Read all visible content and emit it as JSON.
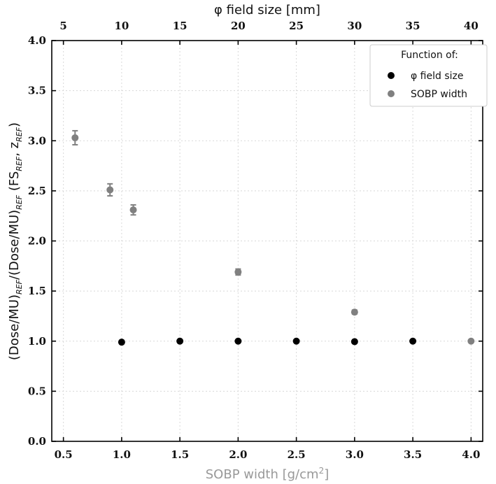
{
  "chart_data": {
    "type": "scatter",
    "xlabel": "SOBP width [g/cm²]",
    "xlabel_base": "SOBP width [g/cm",
    "xlabel_sup": "2",
    "xlabel_end": "]",
    "top_xlabel": "φ field size [mm]",
    "ylabel_parts": [
      "(Dose/MU)",
      "REF",
      "/(Dose/MU)",
      "REF",
      " (FS",
      "REF",
      ", z",
      "REF",
      ")"
    ],
    "xlim": [
      0.4,
      4.1
    ],
    "ylim": [
      0.0,
      4.0
    ],
    "x_ticks": [
      "0.5",
      "1.0",
      "1.5",
      "2.0",
      "2.5",
      "3.0",
      "3.5",
      "4.0"
    ],
    "y_ticks": [
      "0.0",
      "0.5",
      "1.0",
      "1.5",
      "2.0",
      "2.5",
      "3.0",
      "3.5",
      "4.0"
    ],
    "top_ticks": [
      "5",
      "10",
      "15",
      "20",
      "25",
      "30",
      "35",
      "40"
    ],
    "top_axis_mapping": "field_size_mm = 10 * SOBP_width",
    "grid": true,
    "legend": {
      "title": "Function of:",
      "placement": "top-right",
      "entries": [
        "φ field size",
        "SOBP width"
      ]
    },
    "series": [
      {
        "name": "φ field size",
        "color": "#000000",
        "x": [
          1.0,
          1.5,
          2.0,
          2.5,
          3.0,
          3.5
        ],
        "y": [
          0.99,
          1.0,
          1.0,
          1.0,
          0.995,
          1.0
        ],
        "yerr": [
          0.01,
          0.01,
          0.01,
          0.01,
          0.01,
          0.01
        ]
      },
      {
        "name": "SOBP width",
        "color": "#808080",
        "x": [
          0.6,
          0.9,
          1.1,
          2.0,
          3.0,
          4.0
        ],
        "y": [
          3.03,
          2.51,
          2.31,
          1.69,
          1.29,
          1.0
        ],
        "yerr": [
          0.07,
          0.06,
          0.05,
          0.03,
          0.02,
          0.01
        ]
      }
    ]
  }
}
